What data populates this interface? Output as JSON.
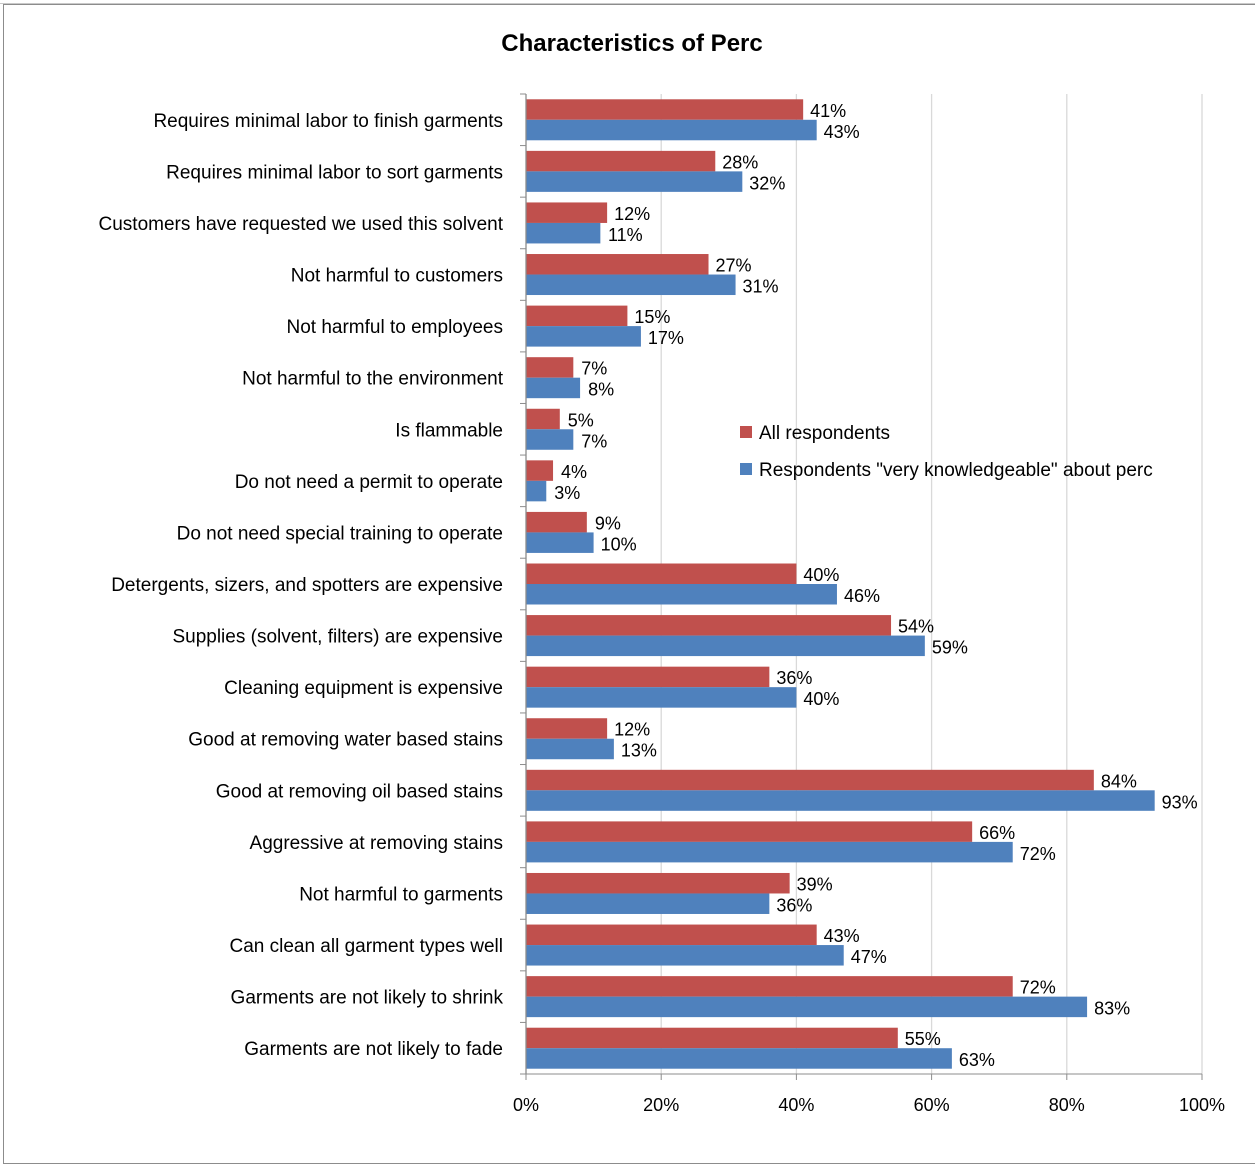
{
  "chart_data": {
    "type": "bar",
    "orientation": "horizontal",
    "title": "Characteristics of Perc",
    "xlim": [
      0,
      100
    ],
    "x_ticks": [
      "0%",
      "20%",
      "40%",
      "60%",
      "80%",
      "100%"
    ],
    "grid": "vertical",
    "legend_position": "right",
    "categories": [
      "Requires minimal labor to finish garments",
      "Requires minimal labor to sort garments",
      "Customers have requested we used this solvent",
      "Not harmful to customers",
      "Not harmful to employees",
      "Not harmful to the environment",
      "Is flammable",
      "Do not need a permit to operate",
      "Do not need special training to operate",
      "Detergents, sizers, and spotters are expensive",
      "Supplies (solvent, filters) are expensive",
      "Cleaning equipment is expensive",
      "Good at removing water based stains",
      "Good at removing oil based stains",
      "Aggressive at removing stains",
      "Not harmful to garments",
      "Can clean all garment types well",
      "Garments are not likely to shrink",
      "Garments are not likely to fade"
    ],
    "series": [
      {
        "name": "All respondents",
        "color": "#c0504d",
        "values": [
          41,
          28,
          12,
          27,
          15,
          7,
          5,
          4,
          9,
          40,
          54,
          36,
          12,
          84,
          66,
          39,
          43,
          72,
          55
        ]
      },
      {
        "name": "Respondents \"very knowledgeable\" about perc",
        "color": "#4f81bd",
        "values": [
          43,
          32,
          11,
          31,
          17,
          8,
          7,
          3,
          10,
          46,
          59,
          40,
          13,
          93,
          72,
          36,
          47,
          83,
          63
        ]
      }
    ]
  }
}
